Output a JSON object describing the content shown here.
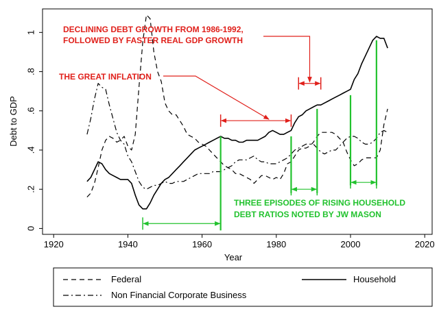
{
  "chart_data": {
    "type": "line",
    "xlabel": "Year",
    "ylabel": "Debt to GDP",
    "xlim": [
      1917,
      2022
    ],
    "ylim": [
      -0.03,
      1.12
    ],
    "x_ticks": [
      1920,
      1940,
      1960,
      1980,
      2000,
      2020
    ],
    "x_tick_labels": [
      "1920",
      "1940",
      "1960",
      "1980",
      "2000",
      "2020"
    ],
    "y_ticks": [
      0,
      0.2,
      0.4,
      0.6,
      0.8,
      1
    ],
    "y_tick_labels": [
      "0",
      ".2",
      ".4",
      ".6",
      ".8",
      "1"
    ],
    "colors": {
      "red": "#e0201b",
      "green": "#22c22e",
      "line": "#000000"
    },
    "series": [
      {
        "name": "Federal",
        "style": "dash",
        "points": [
          [
            1929,
            0.16
          ],
          [
            1930,
            0.18
          ],
          [
            1931,
            0.23
          ],
          [
            1932,
            0.31
          ],
          [
            1933,
            0.4
          ],
          [
            1934,
            0.45
          ],
          [
            1935,
            0.47
          ],
          [
            1936,
            0.46
          ],
          [
            1937,
            0.44
          ],
          [
            1938,
            0.45
          ],
          [
            1939,
            0.47
          ],
          [
            1940,
            0.42
          ],
          [
            1941,
            0.4
          ],
          [
            1942,
            0.48
          ],
          [
            1943,
            0.72
          ],
          [
            1944,
            0.95
          ],
          [
            1945,
            1.09
          ],
          [
            1946,
            1.07
          ],
          [
            1947,
            0.9
          ],
          [
            1948,
            0.8
          ],
          [
            1949,
            0.75
          ],
          [
            1950,
            0.64
          ],
          [
            1951,
            0.6
          ],
          [
            1952,
            0.58
          ],
          [
            1953,
            0.58
          ],
          [
            1954,
            0.55
          ],
          [
            1955,
            0.52
          ],
          [
            1956,
            0.48
          ],
          [
            1957,
            0.47
          ],
          [
            1958,
            0.46
          ],
          [
            1959,
            0.44
          ],
          [
            1960,
            0.43
          ],
          [
            1961,
            0.42
          ],
          [
            1962,
            0.4
          ],
          [
            1963,
            0.38
          ],
          [
            1964,
            0.36
          ],
          [
            1965,
            0.34
          ],
          [
            1966,
            0.32
          ],
          [
            1967,
            0.31
          ],
          [
            1968,
            0.3
          ],
          [
            1969,
            0.28
          ],
          [
            1970,
            0.28
          ],
          [
            1971,
            0.27
          ],
          [
            1972,
            0.26
          ],
          [
            1973,
            0.25
          ],
          [
            1974,
            0.23
          ],
          [
            1975,
            0.25
          ],
          [
            1976,
            0.27
          ],
          [
            1977,
            0.27
          ],
          [
            1978,
            0.26
          ],
          [
            1979,
            0.25
          ],
          [
            1980,
            0.26
          ],
          [
            1981,
            0.25
          ],
          [
            1982,
            0.28
          ],
          [
            1983,
            0.33
          ],
          [
            1984,
            0.34
          ],
          [
            1985,
            0.37
          ],
          [
            1986,
            0.4
          ],
          [
            1987,
            0.41
          ],
          [
            1988,
            0.41
          ],
          [
            1989,
            0.42
          ],
          [
            1990,
            0.44
          ],
          [
            1991,
            0.47
          ],
          [
            1992,
            0.49
          ],
          [
            1993,
            0.49
          ],
          [
            1994,
            0.49
          ],
          [
            1995,
            0.49
          ],
          [
            1996,
            0.48
          ],
          [
            1997,
            0.46
          ],
          [
            1998,
            0.44
          ],
          [
            1999,
            0.39
          ],
          [
            2000,
            0.35
          ],
          [
            2001,
            0.32
          ],
          [
            2002,
            0.33
          ],
          [
            2003,
            0.35
          ],
          [
            2004,
            0.36
          ],
          [
            2005,
            0.36
          ],
          [
            2006,
            0.36
          ],
          [
            2007,
            0.36
          ],
          [
            2008,
            0.4
          ],
          [
            2009,
            0.53
          ],
          [
            2010,
            0.61
          ]
        ]
      },
      {
        "name": "Household",
        "style": "solid",
        "points": [
          [
            1929,
            0.24
          ],
          [
            1930,
            0.26
          ],
          [
            1931,
            0.3
          ],
          [
            1932,
            0.34
          ],
          [
            1933,
            0.33
          ],
          [
            1934,
            0.3
          ],
          [
            1935,
            0.28
          ],
          [
            1936,
            0.27
          ],
          [
            1937,
            0.26
          ],
          [
            1938,
            0.25
          ],
          [
            1939,
            0.25
          ],
          [
            1940,
            0.25
          ],
          [
            1941,
            0.23
          ],
          [
            1942,
            0.17
          ],
          [
            1943,
            0.12
          ],
          [
            1944,
            0.1
          ],
          [
            1945,
            0.1
          ],
          [
            1946,
            0.13
          ],
          [
            1947,
            0.17
          ],
          [
            1948,
            0.2
          ],
          [
            1949,
            0.23
          ],
          [
            1950,
            0.25
          ],
          [
            1951,
            0.26
          ],
          [
            1952,
            0.28
          ],
          [
            1953,
            0.3
          ],
          [
            1954,
            0.32
          ],
          [
            1955,
            0.34
          ],
          [
            1956,
            0.36
          ],
          [
            1957,
            0.38
          ],
          [
            1958,
            0.4
          ],
          [
            1959,
            0.41
          ],
          [
            1960,
            0.42
          ],
          [
            1961,
            0.43
          ],
          [
            1962,
            0.44
          ],
          [
            1963,
            0.45
          ],
          [
            1964,
            0.46
          ],
          [
            1965,
            0.47
          ],
          [
            1966,
            0.46
          ],
          [
            1967,
            0.46
          ],
          [
            1968,
            0.45
          ],
          [
            1969,
            0.45
          ],
          [
            1970,
            0.44
          ],
          [
            1971,
            0.44
          ],
          [
            1972,
            0.45
          ],
          [
            1973,
            0.45
          ],
          [
            1974,
            0.45
          ],
          [
            1975,
            0.45
          ],
          [
            1976,
            0.46
          ],
          [
            1977,
            0.47
          ],
          [
            1978,
            0.49
          ],
          [
            1979,
            0.5
          ],
          [
            1980,
            0.49
          ],
          [
            1981,
            0.48
          ],
          [
            1982,
            0.48
          ],
          [
            1983,
            0.49
          ],
          [
            1984,
            0.5
          ],
          [
            1985,
            0.54
          ],
          [
            1986,
            0.57
          ],
          [
            1987,
            0.58
          ],
          [
            1988,
            0.6
          ],
          [
            1989,
            0.61
          ],
          [
            1990,
            0.62
          ],
          [
            1991,
            0.63
          ],
          [
            1992,
            0.63
          ],
          [
            1993,
            0.64
          ],
          [
            1994,
            0.65
          ],
          [
            1995,
            0.66
          ],
          [
            1996,
            0.67
          ],
          [
            1997,
            0.68
          ],
          [
            1998,
            0.69
          ],
          [
            1999,
            0.7
          ],
          [
            2000,
            0.71
          ],
          [
            2001,
            0.76
          ],
          [
            2002,
            0.79
          ],
          [
            2003,
            0.84
          ],
          [
            2004,
            0.88
          ],
          [
            2005,
            0.92
          ],
          [
            2006,
            0.96
          ],
          [
            2007,
            0.98
          ],
          [
            2008,
            0.97
          ],
          [
            2009,
            0.97
          ],
          [
            2010,
            0.92
          ]
        ]
      },
      {
        "name": "Non Financial Corporate Business",
        "style": "dashdot",
        "points": [
          [
            1929,
            0.48
          ],
          [
            1930,
            0.56
          ],
          [
            1931,
            0.66
          ],
          [
            1932,
            0.74
          ],
          [
            1933,
            0.72
          ],
          [
            1934,
            0.71
          ],
          [
            1935,
            0.63
          ],
          [
            1936,
            0.56
          ],
          [
            1937,
            0.49
          ],
          [
            1938,
            0.45
          ],
          [
            1939,
            0.43
          ],
          [
            1940,
            0.37
          ],
          [
            1941,
            0.34
          ],
          [
            1942,
            0.29
          ],
          [
            1943,
            0.24
          ],
          [
            1944,
            0.21
          ],
          [
            1945,
            0.2
          ],
          [
            1946,
            0.21
          ],
          [
            1947,
            0.22
          ],
          [
            1948,
            0.22
          ],
          [
            1949,
            0.23
          ],
          [
            1950,
            0.24
          ],
          [
            1951,
            0.23
          ],
          [
            1952,
            0.23
          ],
          [
            1953,
            0.24
          ],
          [
            1954,
            0.24
          ],
          [
            1955,
            0.24
          ],
          [
            1956,
            0.25
          ],
          [
            1957,
            0.26
          ],
          [
            1958,
            0.27
          ],
          [
            1959,
            0.28
          ],
          [
            1960,
            0.28
          ],
          [
            1961,
            0.28
          ],
          [
            1962,
            0.28
          ],
          [
            1963,
            0.29
          ],
          [
            1964,
            0.29
          ],
          [
            1965,
            0.29
          ],
          [
            1966,
            0.3
          ],
          [
            1967,
            0.31
          ],
          [
            1968,
            0.32
          ],
          [
            1969,
            0.34
          ],
          [
            1970,
            0.35
          ],
          [
            1971,
            0.35
          ],
          [
            1972,
            0.35
          ],
          [
            1973,
            0.36
          ],
          [
            1974,
            0.37
          ],
          [
            1975,
            0.35
          ],
          [
            1976,
            0.34
          ],
          [
            1977,
            0.34
          ],
          [
            1978,
            0.33
          ],
          [
            1979,
            0.33
          ],
          [
            1980,
            0.33
          ],
          [
            1981,
            0.34
          ],
          [
            1982,
            0.35
          ],
          [
            1983,
            0.36
          ],
          [
            1984,
            0.38
          ],
          [
            1985,
            0.4
          ],
          [
            1986,
            0.41
          ],
          [
            1987,
            0.42
          ],
          [
            1988,
            0.43
          ],
          [
            1989,
            0.43
          ],
          [
            1990,
            0.43
          ],
          [
            1991,
            0.41
          ],
          [
            1992,
            0.39
          ],
          [
            1993,
            0.38
          ],
          [
            1994,
            0.39
          ],
          [
            1995,
            0.4
          ],
          [
            1996,
            0.4
          ],
          [
            1997,
            0.42
          ],
          [
            1998,
            0.44
          ],
          [
            1999,
            0.46
          ],
          [
            2000,
            0.47
          ],
          [
            2001,
            0.47
          ],
          [
            2002,
            0.46
          ],
          [
            2003,
            0.44
          ],
          [
            2004,
            0.43
          ],
          [
            2005,
            0.43
          ],
          [
            2006,
            0.44
          ],
          [
            2007,
            0.46
          ],
          [
            2008,
            0.49
          ],
          [
            2009,
            0.5
          ],
          [
            2010,
            0.49
          ]
        ]
      }
    ],
    "red_brackets": [
      {
        "x1": 1965,
        "x2": 1984,
        "y": 0.55
      },
      {
        "x1": 1986,
        "x2": 1992,
        "y": 0.74
      }
    ],
    "green_brackets": [
      {
        "x1": 1944,
        "x2": 1965,
        "y": 0.025
      },
      {
        "x1": 1984,
        "x2": 1991,
        "y": 0.2
      },
      {
        "x1": 2000,
        "x2": 2007,
        "y": 0.235
      }
    ],
    "green_verticals": [
      {
        "x": 1965,
        "y_top": 0.47,
        "y_bottom": -0.01
      },
      {
        "x": 1984,
        "y_top": 0.47,
        "y_bottom": 0.18
      },
      {
        "x": 1991,
        "y_top": 0.61,
        "y_bottom": 0.18
      },
      {
        "x": 2000,
        "y_top": 0.68,
        "y_bottom": 0.22
      },
      {
        "x": 2007,
        "y_top": 0.96,
        "y_bottom": 0.22
      }
    ],
    "annotations": {
      "debt_growth_line1": "DECLINING DEBT GROWTH FROM 1986-1992,",
      "debt_growth_line2": "FOLLOWED BY FASTER REAL GDP GROWTH",
      "great_inflation": "THE GREAT INFLATION",
      "episodes_line1": "THREE EPISODES OF RISING HOUSEHOLD",
      "episodes_line2": "DEBT RATIOS NOTED BY JW MASON"
    },
    "legend": {
      "federal": "Federal",
      "household": "Household",
      "corporate": "Non Financial Corporate Business"
    }
  }
}
